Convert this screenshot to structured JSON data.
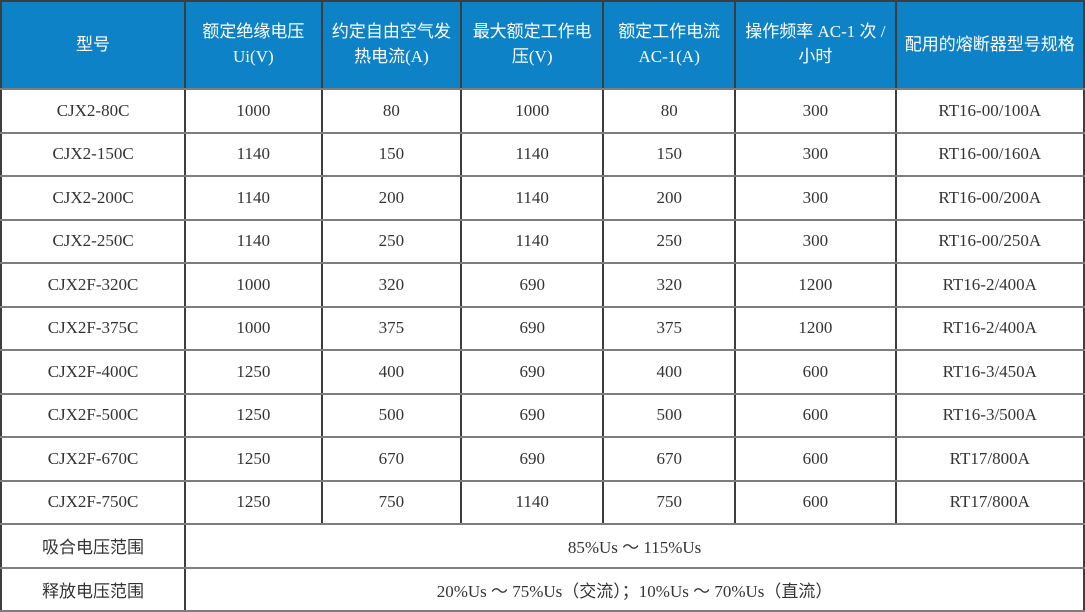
{
  "colors": {
    "header_bg": "#0e82c6",
    "header_text": "#ffffff",
    "body_text": "#333333",
    "border_vertical": "#3d3d3d",
    "border_horizontal": "#7d7d7d"
  },
  "table": {
    "columns": [
      "型号",
      "额定绝缘电压 Ui(V)",
      "约定自由空气发热电流(A)",
      "最大额定工作电压(V)",
      "额定工作电流 AC-1(A)",
      "操作频率 AC-1 次 / 小时",
      "配用的熔断器型号规格"
    ],
    "rows": [
      [
        "CJX2-80C",
        "1000",
        "80",
        "1000",
        "80",
        "300",
        "RT16-00/100A"
      ],
      [
        "CJX2-150C",
        "1140",
        "150",
        "1140",
        "150",
        "300",
        "RT16-00/160A"
      ],
      [
        "CJX2-200C",
        "1140",
        "200",
        "1140",
        "200",
        "300",
        "RT16-00/200A"
      ],
      [
        "CJX2-250C",
        "1140",
        "250",
        "1140",
        "250",
        "300",
        "RT16-00/250A"
      ],
      [
        "CJX2F-320C",
        "1000",
        "320",
        "690",
        "320",
        "1200",
        "RT16-2/400A"
      ],
      [
        "CJX2F-375C",
        "1000",
        "375",
        "690",
        "375",
        "1200",
        "RT16-2/400A"
      ],
      [
        "CJX2F-400C",
        "1250",
        "400",
        "690",
        "400",
        "600",
        "RT16-3/450A"
      ],
      [
        "CJX2F-500C",
        "1250",
        "500",
        "690",
        "500",
        "600",
        "RT16-3/500A"
      ],
      [
        "CJX2F-670C",
        "1250",
        "670",
        "690",
        "670",
        "600",
        "RT17/800A"
      ],
      [
        "CJX2F-750C",
        "1250",
        "750",
        "1140",
        "750",
        "600",
        "RT17/800A"
      ]
    ],
    "footer_rows": [
      {
        "label": "吸合电压范围",
        "value": "85%Us ～ 115%Us"
      },
      {
        "label": "释放电压范围",
        "value": "20%Us ～ 75%Us（交流）；10%Us ～ 70%Us（直流）"
      }
    ]
  }
}
